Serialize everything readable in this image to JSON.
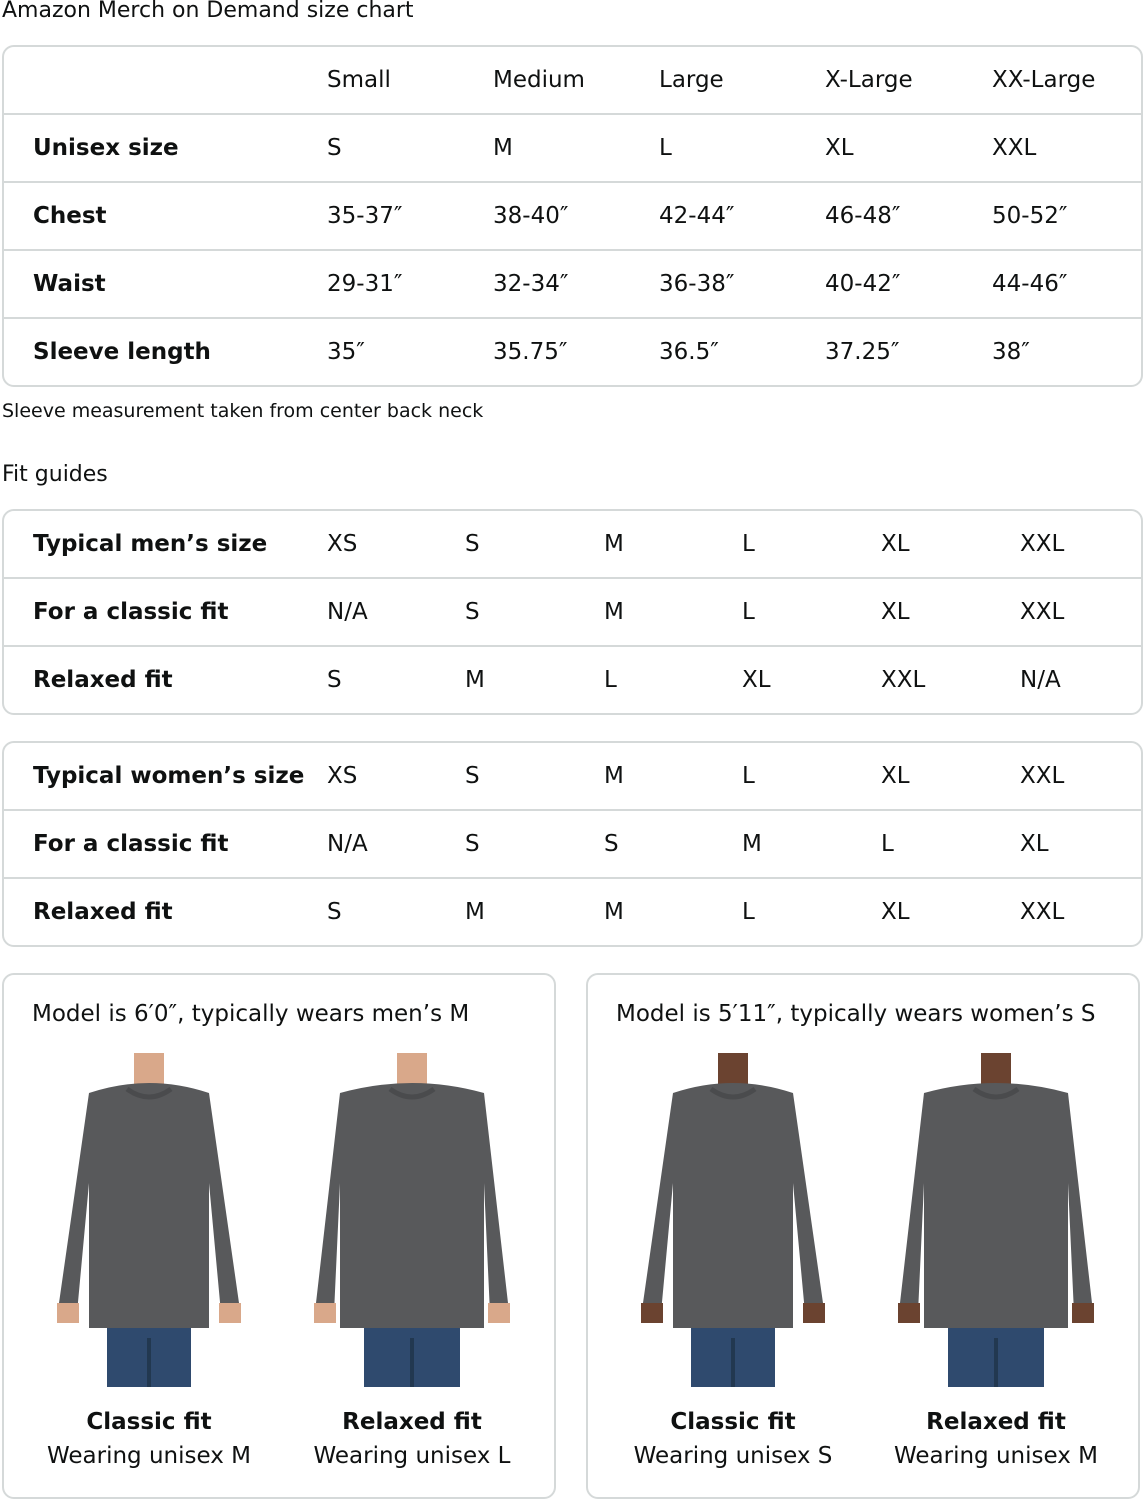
{
  "title": "Amazon Merch on Demand size chart",
  "size_chart": {
    "headers": [
      "",
      "Small",
      "Medium",
      "Large",
      "X-Large",
      "XX-Large"
    ],
    "rows": [
      {
        "label": "Unisex size",
        "values": [
          "S",
          "M",
          "L",
          "XL",
          "XXL"
        ]
      },
      {
        "label": "Chest",
        "values": [
          "35-37″",
          "38-40″",
          "42-44″",
          "46-48″",
          "50-52″"
        ]
      },
      {
        "label": "Waist",
        "values": [
          "29-31″",
          "32-34″",
          "36-38″",
          "40-42″",
          "44-46″"
        ]
      },
      {
        "label": "Sleeve length",
        "values": [
          "35″",
          "35.75″",
          "36.5″",
          "37.25″",
          "38″"
        ]
      }
    ]
  },
  "note": "Sleeve measurement taken from center back neck",
  "fit_heading": "Fit guides",
  "mens": [
    {
      "label": "Typical men’s size",
      "values": [
        "XS",
        "S",
        "M",
        "L",
        "XL",
        "XXL"
      ]
    },
    {
      "label": "For a classic fit",
      "values": [
        "N/A",
        "S",
        "M",
        "L",
        "XL",
        "XXL"
      ]
    },
    {
      "label": "Relaxed fit",
      "values": [
        "S",
        "M",
        "L",
        "XL",
        "XXL",
        "N/A"
      ]
    }
  ],
  "womens": [
    {
      "label": "Typical women’s size",
      "values": [
        "XS",
        "S",
        "M",
        "L",
        "XL",
        "XXL"
      ]
    },
    {
      "label": "For a classic fit",
      "values": [
        "N/A",
        "S",
        "S",
        "M",
        "L",
        "XL"
      ]
    },
    {
      "label": "Relaxed fit",
      "values": [
        "S",
        "M",
        "M",
        "L",
        "XL",
        "XXL"
      ]
    }
  ],
  "models": [
    {
      "title": "Model is 6′0″, typically wears men’s M",
      "skin": "#d9a88a",
      "hair": "#8a6a4a",
      "photos": [
        {
          "fit": "Classic fit",
          "wearing": "Wearing unisex M"
        },
        {
          "fit": "Relaxed fit",
          "wearing": "Wearing unisex L"
        }
      ]
    },
    {
      "title": "Model is 5′11″, typically wears women’s S",
      "skin": "#6b4330",
      "hair": "#2a1a10",
      "photos": [
        {
          "fit": "Classic fit",
          "wearing": "Wearing unisex S"
        },
        {
          "fit": "Relaxed fit",
          "wearing": "Wearing unisex M"
        }
      ]
    }
  ]
}
